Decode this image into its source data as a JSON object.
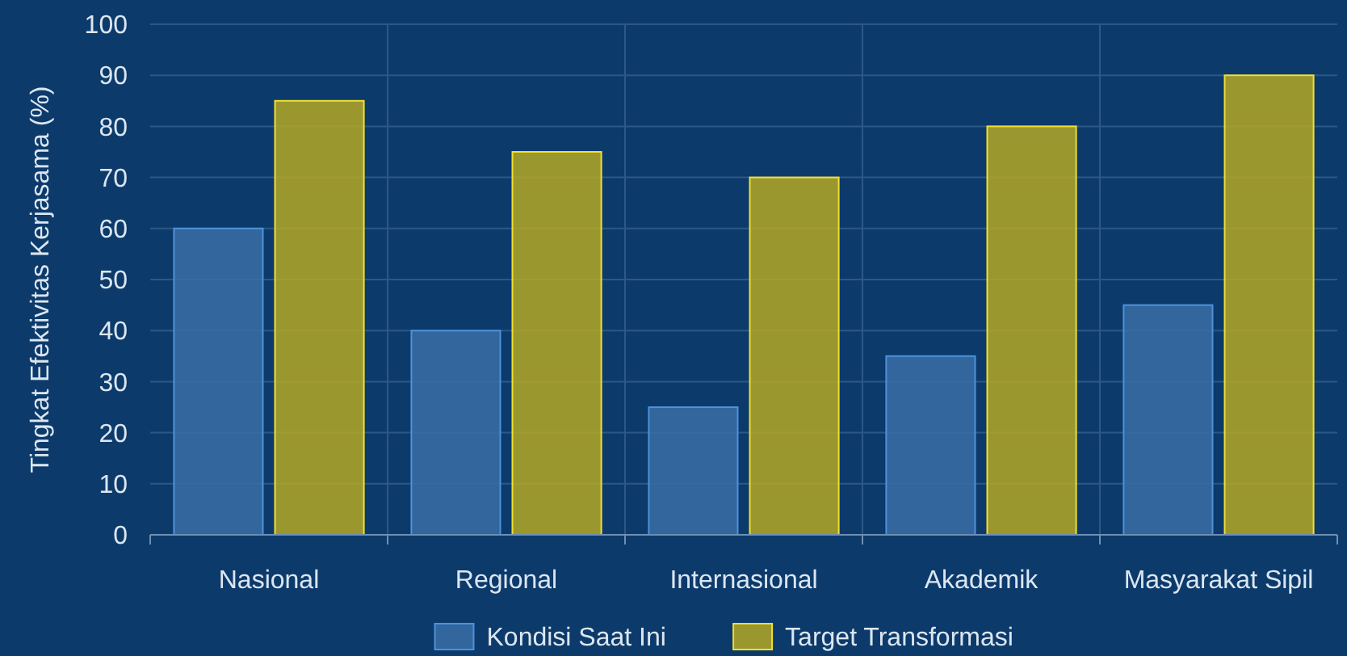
{
  "chart_data": {
    "type": "bar",
    "ylabel": "Tingkat Efektivitas Kerjasama (%)",
    "categories": [
      "Nasional",
      "Regional",
      "Internasional",
      "Akademik",
      "Masyarakat Sipil"
    ],
    "series": [
      {
        "name": "Kondisi Saat Ini",
        "color": "#3a6ea5",
        "values": [
          60,
          40,
          25,
          35,
          45
        ]
      },
      {
        "name": "Target Transformasi",
        "color": "#b5a825",
        "values": [
          85,
          75,
          70,
          80,
          90
        ]
      }
    ],
    "ylim": [
      0,
      100
    ],
    "yticks": [
      0,
      10,
      20,
      30,
      40,
      50,
      60,
      70,
      80,
      90,
      100
    ],
    "grid": true,
    "legend": "bottom"
  }
}
